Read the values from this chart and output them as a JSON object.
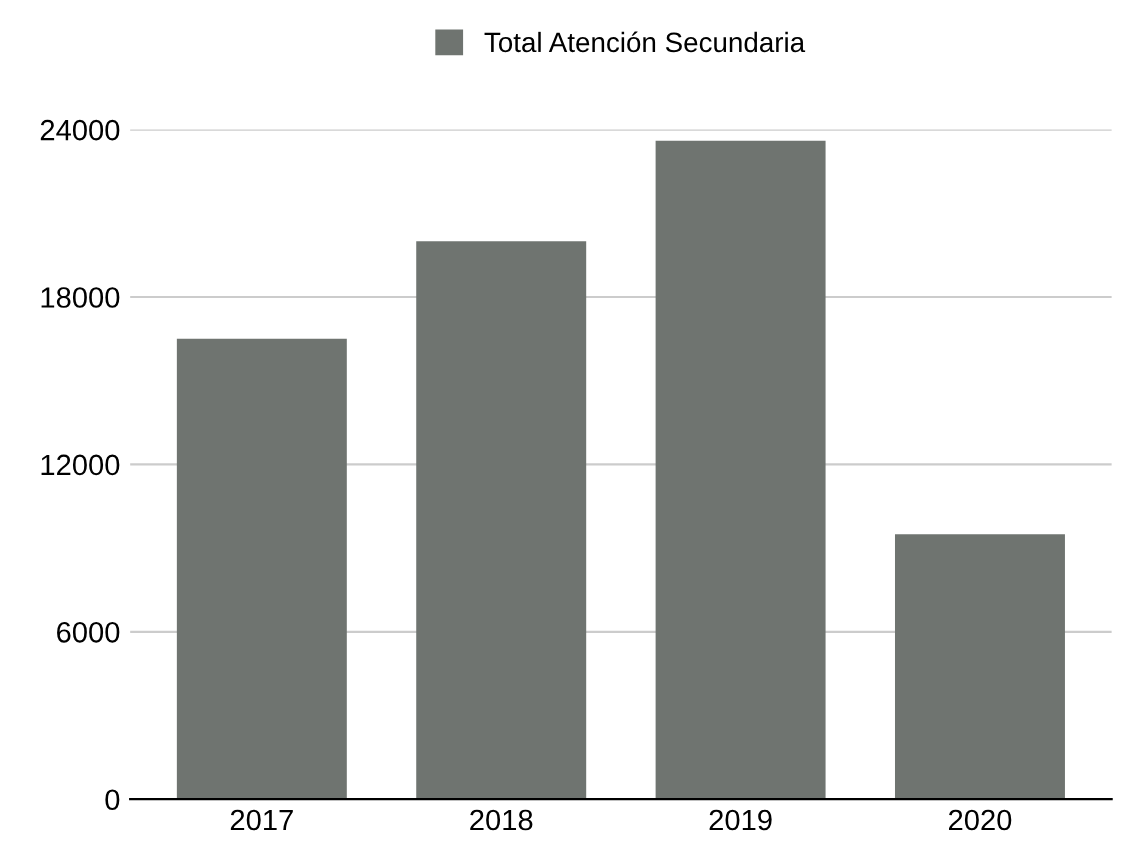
{
  "chart_data": {
    "type": "bar",
    "categories": [
      "2017",
      "2018",
      "2019",
      "2020"
    ],
    "series": [
      {
        "name": "Total Atención Secundaria",
        "color": "#6f7470",
        "values": [
          16500,
          20000,
          23600,
          9500
        ]
      }
    ],
    "ylim": [
      0,
      24000
    ],
    "yticks": [
      0,
      6000,
      12000,
      18000,
      24000
    ],
    "grid": "y",
    "legend": "top"
  }
}
